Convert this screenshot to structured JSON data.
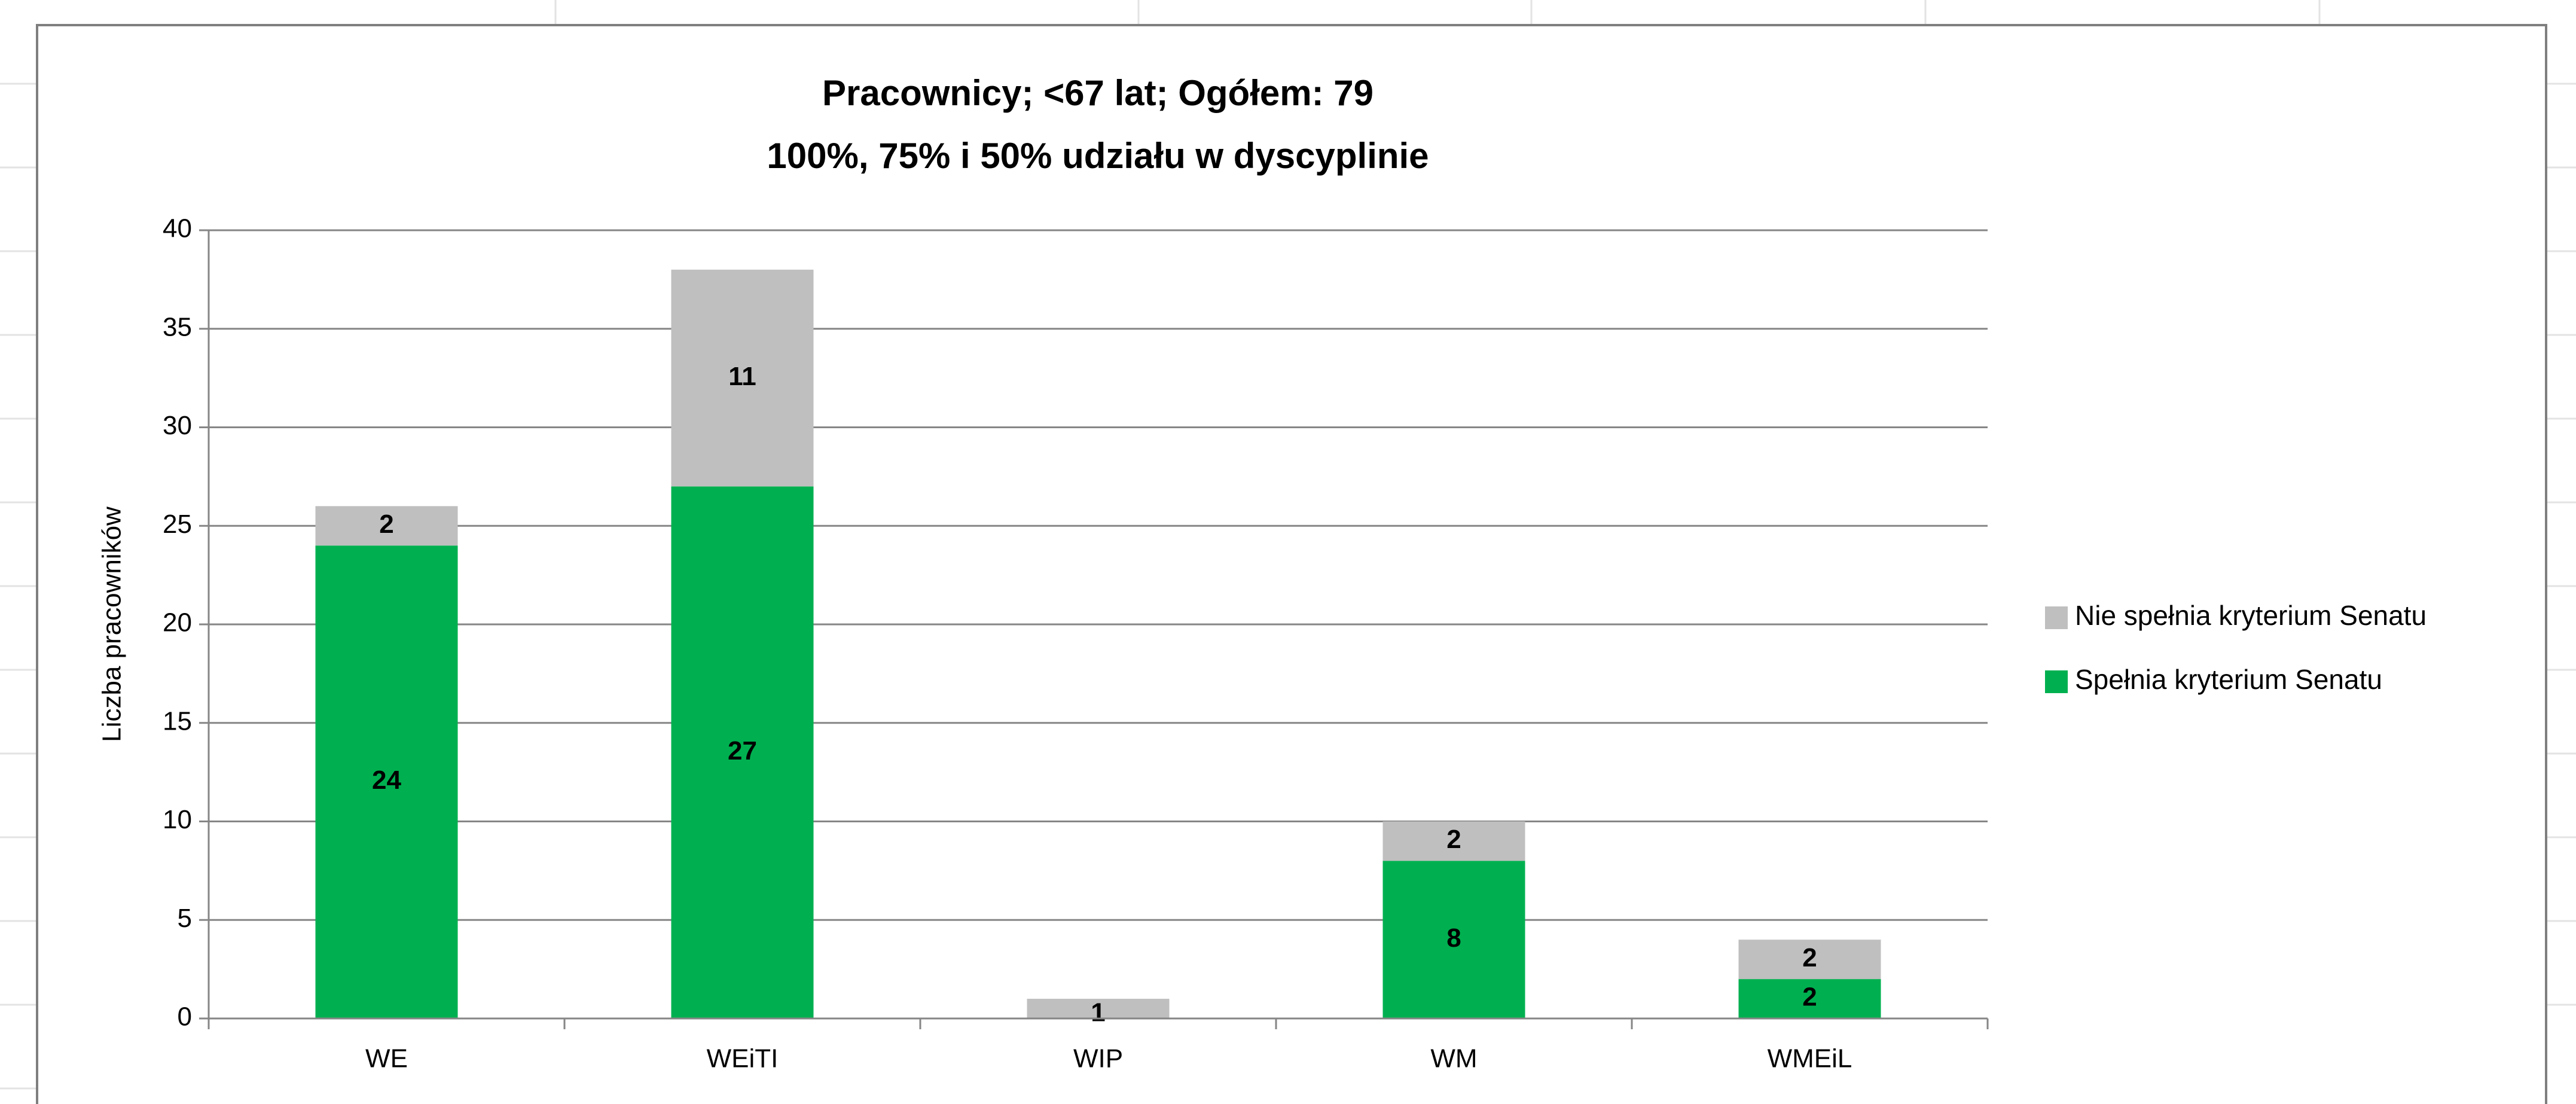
{
  "chart_data": {
    "type": "bar",
    "stacked": true,
    "title": "Pracownicy; <67 lat; Ogółem: 79",
    "subtitle": "100%, 75% i 50% udziału w dyscyplinie",
    "ylabel": "Liczba pracowników",
    "categories": [
      "WE",
      "WEiTI",
      "WIP",
      "WM",
      "WMEiL"
    ],
    "series": [
      {
        "name": "Spełnia kryterium Senatu",
        "color": "#00b050",
        "values": [
          24,
          27,
          null,
          8,
          2
        ]
      },
      {
        "name": "Nie spełnia kryterium Senatu",
        "color": "#bfbfbf",
        "values": [
          2,
          11,
          1,
          2,
          2
        ]
      }
    ],
    "ylim": [
      0,
      40
    ],
    "yticks": [
      0,
      5,
      10,
      15,
      20,
      25,
      30,
      35,
      40
    ],
    "grid": true,
    "legend": "right"
  }
}
